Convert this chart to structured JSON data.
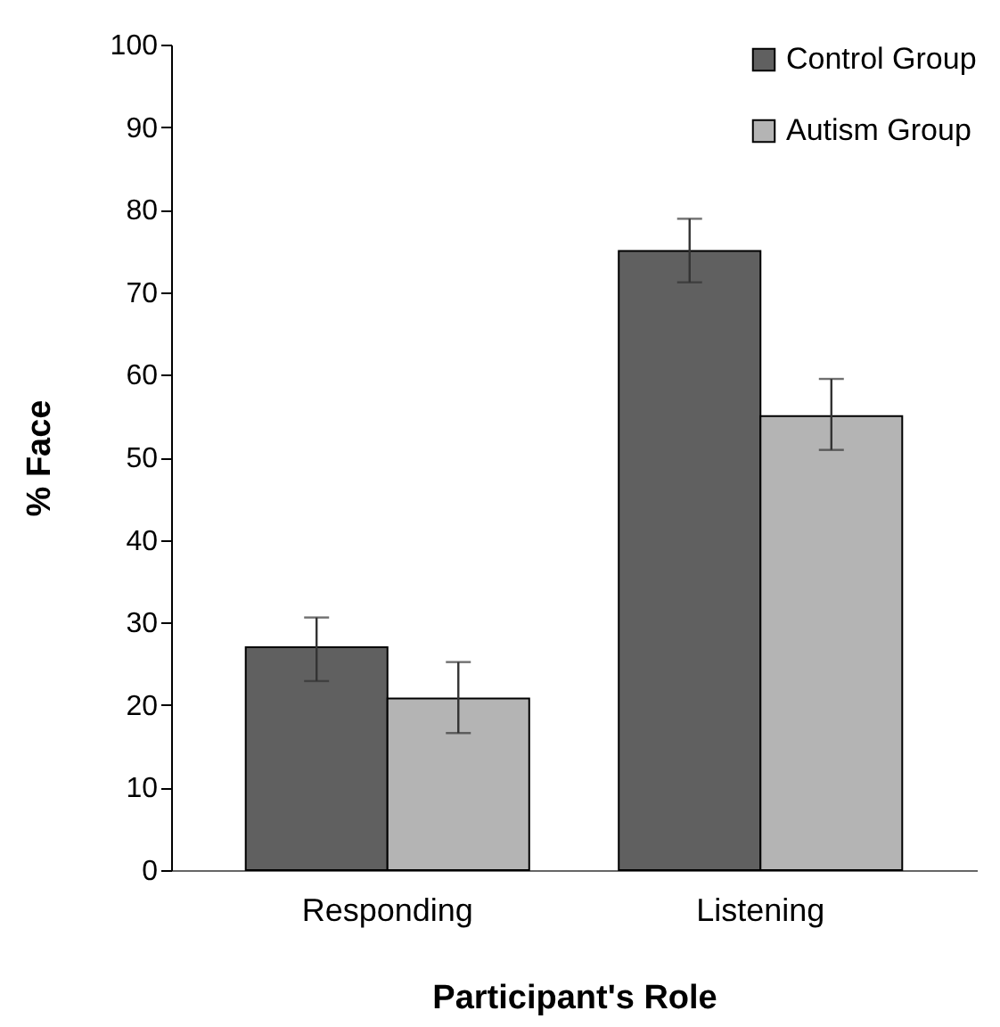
{
  "chart_data": {
    "type": "bar",
    "xlabel": "Participant's Role",
    "ylabel": "% Face",
    "categories": [
      "Responding",
      "Listening"
    ],
    "series": [
      {
        "name": "Control Group",
        "color": "#606060",
        "values": [
          27.0,
          75.0
        ],
        "errors": [
          [
            22.9,
            30.6
          ],
          [
            71.2,
            78.9
          ]
        ]
      },
      {
        "name": "Autism Group",
        "color": "#b4b4b4",
        "values": [
          20.8,
          55.0
        ],
        "errors": [
          [
            16.6,
            25.2
          ],
          [
            50.9,
            59.5
          ]
        ]
      }
    ],
    "ylim": [
      0,
      100
    ],
    "yticks": [
      0,
      10,
      20,
      30,
      40,
      50,
      60,
      70,
      80,
      90,
      100
    ],
    "grid": false,
    "legend": "top right"
  }
}
